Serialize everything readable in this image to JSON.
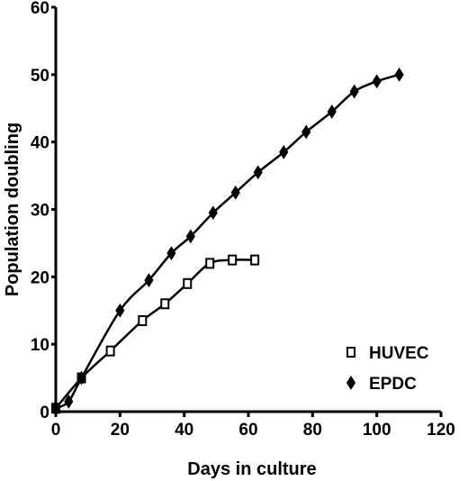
{
  "chart_data": {
    "type": "line",
    "xlabel": "Days in culture",
    "ylabel": "Population doubling",
    "xlim": [
      0,
      120
    ],
    "ylim": [
      0,
      60
    ],
    "xticks": [
      0,
      20,
      40,
      60,
      80,
      100,
      120
    ],
    "yticks": [
      0,
      10,
      20,
      30,
      40,
      50,
      60
    ],
    "grid": false,
    "legend_position": "bottom-right",
    "series": [
      {
        "name": "HUVEC",
        "marker": "open-square",
        "x": [
          0,
          8,
          17,
          27,
          34,
          41,
          48,
          55,
          62
        ],
        "y": [
          0.5,
          5,
          9,
          13.5,
          16,
          19,
          22,
          22.5,
          22.5
        ]
      },
      {
        "name": "EPDC",
        "marker": "filled-diamond",
        "x": [
          0,
          4,
          8,
          20,
          29,
          36,
          42,
          49,
          56,
          63,
          71,
          78,
          86,
          93,
          100,
          107
        ],
        "y": [
          0.5,
          1.5,
          5,
          15,
          19.5,
          23.5,
          26,
          29.5,
          32.5,
          35.5,
          38.5,
          41.5,
          44.5,
          47.5,
          49,
          50
        ]
      }
    ]
  }
}
